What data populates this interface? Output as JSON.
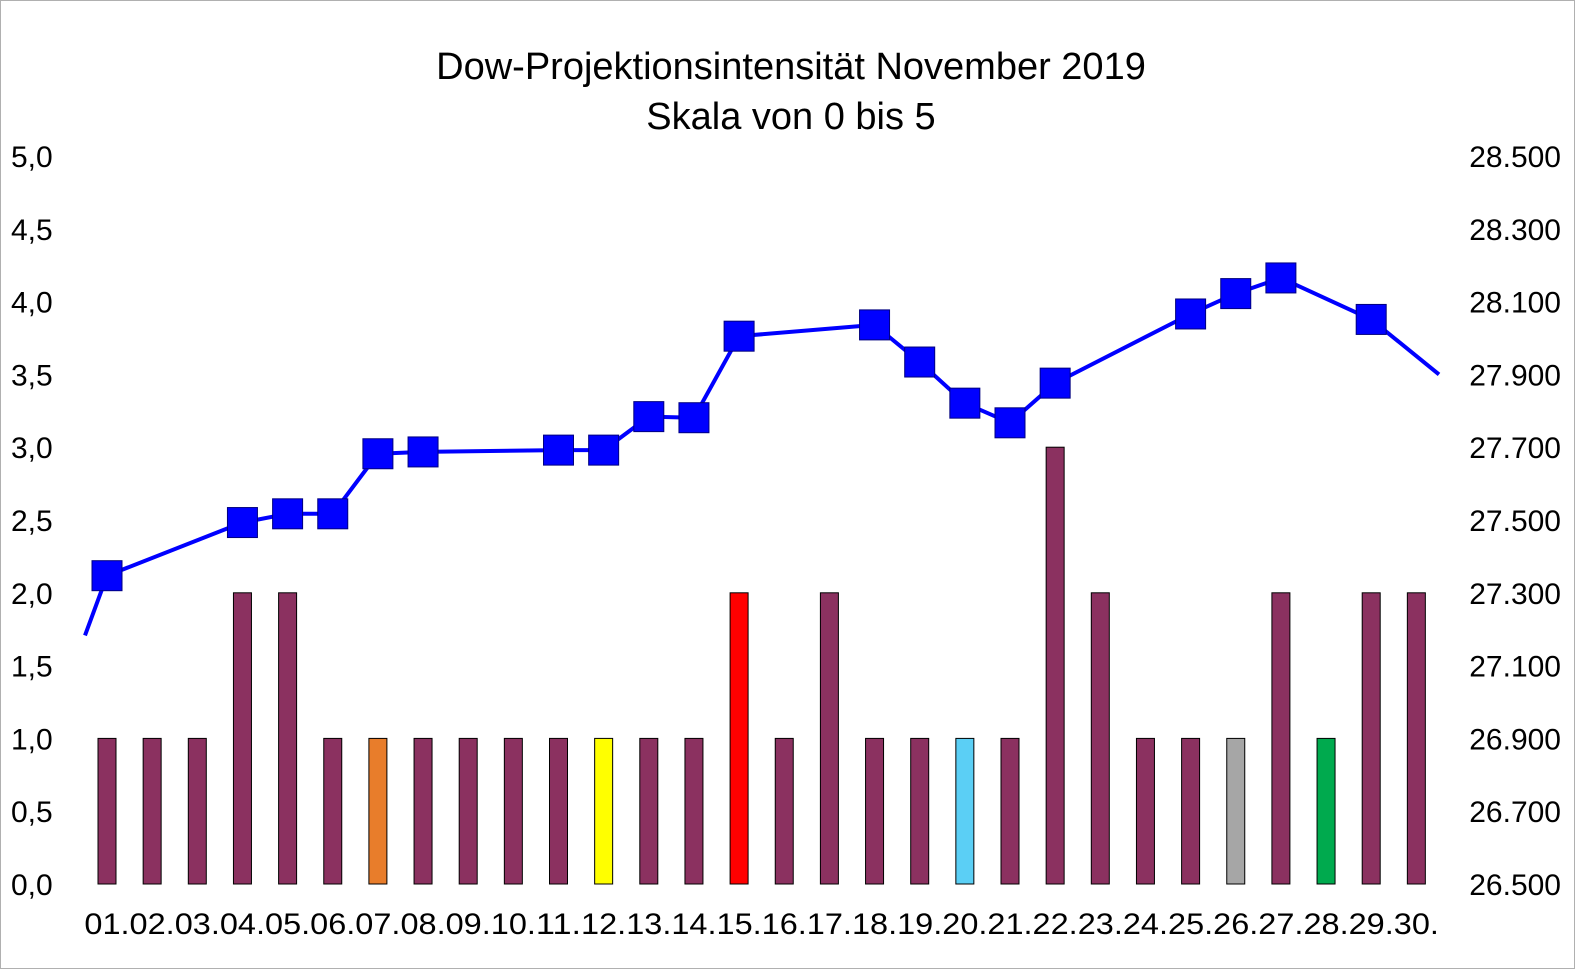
{
  "chart_data": {
    "type": "bar",
    "title": "Dow-Projektionsintensität November 2019",
    "subtitle": "Skala von 0 bis 5",
    "categories": [
      "01.",
      "02.",
      "03.",
      "04.",
      "05.",
      "06.",
      "07.",
      "08.",
      "09.",
      "10.",
      "11.",
      "12.",
      "13.",
      "14.",
      "15.",
      "16.",
      "17.",
      "18.",
      "19.",
      "20.",
      "21.",
      "22.",
      "23.",
      "24.",
      "25.",
      "26.",
      "27.",
      "28.",
      "29.",
      "30."
    ],
    "y_left": {
      "range": [
        0,
        5
      ],
      "ticks": [
        "0,0",
        "0,5",
        "1,0",
        "1,5",
        "2,0",
        "2,5",
        "3,0",
        "3,5",
        "4,0",
        "4,5",
        "5,0"
      ]
    },
    "y_right": {
      "range": [
        26500,
        28500
      ],
      "ticks": [
        "26.500",
        "26.700",
        "26.900",
        "27.100",
        "27.300",
        "27.500",
        "27.700",
        "27.900",
        "28.100",
        "28.300",
        "28.500"
      ]
    },
    "grid": false,
    "legend": "none",
    "series": [
      {
        "type": "bar",
        "axis": "left",
        "values": [
          1.0,
          1.0,
          1.0,
          2.0,
          2.0,
          1.0,
          1.0,
          1.0,
          1.0,
          1.0,
          1.0,
          1.0,
          1.0,
          1.0,
          2.0,
          1.0,
          2.0,
          1.0,
          1.0,
          1.0,
          1.0,
          3.0,
          2.0,
          1.0,
          1.0,
          1.0,
          2.0,
          1.0,
          2.0,
          2.0
        ],
        "colors": [
          "#8B3160",
          "#8B3160",
          "#8B3160",
          "#8B3160",
          "#8B3160",
          "#8B3160",
          "#E87D2B",
          "#8B3160",
          "#8B3160",
          "#8B3160",
          "#8B3160",
          "#FFFF00",
          "#8B3160",
          "#8B3160",
          "#FF0000",
          "#8B3160",
          "#8B3160",
          "#8B3160",
          "#8B3160",
          "#5BCFF5",
          "#8B3160",
          "#8B3160",
          "#8B3160",
          "#8B3160",
          "#8B3160",
          "#A6A6A6",
          "#8B3160",
          "#00AA4E",
          "#8B3160",
          "#8B3160"
        ]
      },
      {
        "type": "line",
        "axis": "right",
        "color": "#0000FF",
        "points": [
          {
            "x": "01.",
            "y": 27347
          },
          {
            "x": "04.",
            "y": 27493
          },
          {
            "x": "05.",
            "y": 27517
          },
          {
            "x": "06.",
            "y": 27517
          },
          {
            "x": "07.",
            "y": 27682
          },
          {
            "x": "08.",
            "y": 27687
          },
          {
            "x": "11.",
            "y": 27692
          },
          {
            "x": "12.",
            "y": 27692
          },
          {
            "x": "13.",
            "y": 27784
          },
          {
            "x": "14.",
            "y": 27781
          },
          {
            "x": "15.",
            "y": 28005
          },
          {
            "x": "18.",
            "y": 28036
          },
          {
            "x": "19.",
            "y": 27934
          },
          {
            "x": "20.",
            "y": 27821
          },
          {
            "x": "21.",
            "y": 27767
          },
          {
            "x": "22.",
            "y": 27876
          },
          {
            "x": "25.",
            "y": 28066
          },
          {
            "x": "26.",
            "y": 28122
          },
          {
            "x": "27.",
            "y": 28165
          },
          {
            "x": "29.",
            "y": 28051
          }
        ]
      }
    ]
  }
}
